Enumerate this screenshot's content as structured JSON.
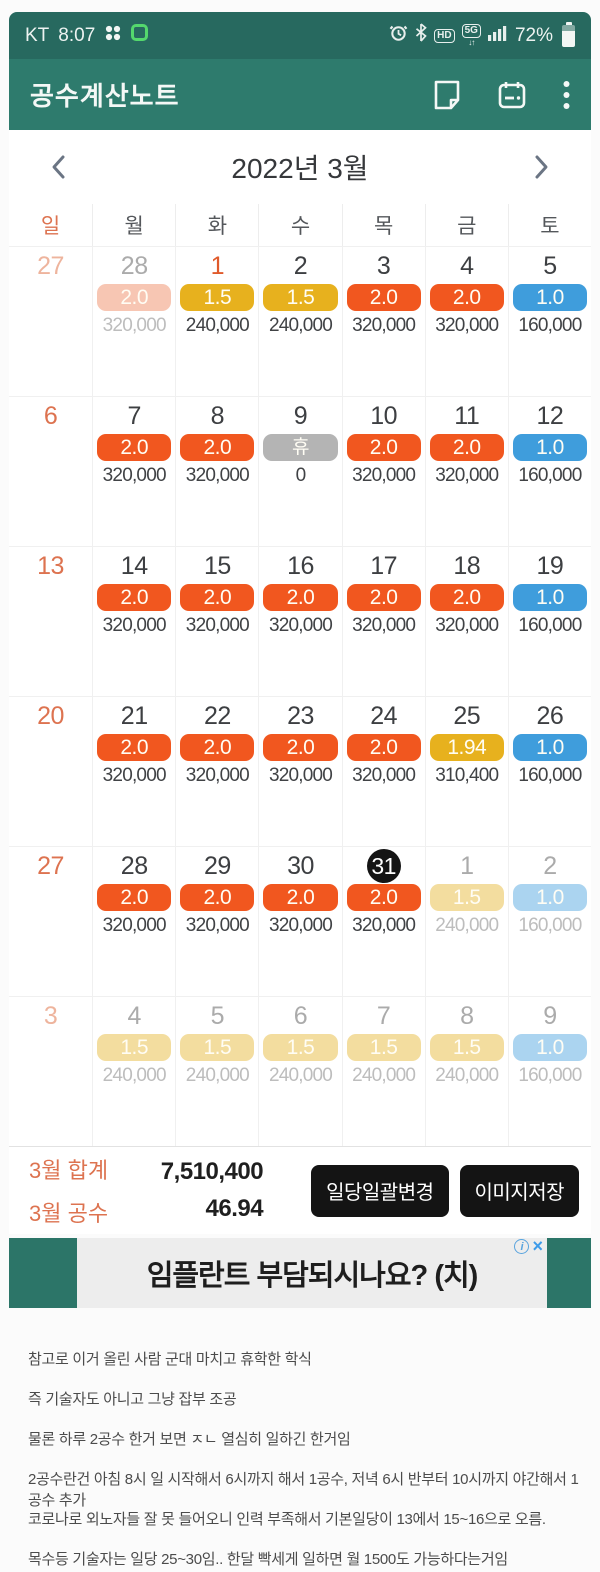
{
  "colors": {
    "status_bar": "#27695f",
    "app_bar": "#2e7b6d",
    "sunday": "#dd7350",
    "holiday": "#e05a2b",
    "pill_full": "#f1571f",
    "pill_half": "#e7b11e",
    "pill_single": "#3f9ddc",
    "pill_rest": "#b4b4b4",
    "pill_full_faded": "#f7c6b3",
    "pill_half_faded": "#f3dd9f",
    "pill_single_faded": "#abd4f0",
    "ad_teal": "#2c7568"
  },
  "status_bar": {
    "carrier": "KT",
    "time": "8:07",
    "hd_label": "HD",
    "fiveg_label": "5G",
    "battery_percent": "72%"
  },
  "app_bar": {
    "title": "공수계산노트"
  },
  "calendar": {
    "month_label": "2022년 3월",
    "day_headers": [
      "일",
      "월",
      "화",
      "수",
      "목",
      "금",
      "토"
    ],
    "weeks": [
      [
        {
          "d": "27",
          "dc": "sunout"
        },
        {
          "d": "28",
          "dc": "out",
          "p": "2.0",
          "pc": "of",
          "a": "320,000",
          "ac": "f"
        },
        {
          "d": "1",
          "dc": "hol",
          "p": "1.5",
          "pc": "y",
          "a": "240,000",
          "ac": "n"
        },
        {
          "d": "2",
          "dc": "wd",
          "p": "1.5",
          "pc": "y",
          "a": "240,000",
          "ac": "n"
        },
        {
          "d": "3",
          "dc": "wd",
          "p": "2.0",
          "pc": "o",
          "a": "320,000",
          "ac": "n"
        },
        {
          "d": "4",
          "dc": "wd",
          "p": "2.0",
          "pc": "o",
          "a": "320,000",
          "ac": "n"
        },
        {
          "d": "5",
          "dc": "wd",
          "p": "1.0",
          "pc": "b",
          "a": "160,000",
          "ac": "n"
        }
      ],
      [
        {
          "d": "6",
          "dc": "sun"
        },
        {
          "d": "7",
          "dc": "wd",
          "p": "2.0",
          "pc": "o",
          "a": "320,000",
          "ac": "n"
        },
        {
          "d": "8",
          "dc": "wd",
          "p": "2.0",
          "pc": "o",
          "a": "320,000",
          "ac": "n"
        },
        {
          "d": "9",
          "dc": "wd",
          "p": "휴",
          "pc": "g",
          "a": "0",
          "ac": "n"
        },
        {
          "d": "10",
          "dc": "wd",
          "p": "2.0",
          "pc": "o",
          "a": "320,000",
          "ac": "n"
        },
        {
          "d": "11",
          "dc": "wd",
          "p": "2.0",
          "pc": "o",
          "a": "320,000",
          "ac": "n"
        },
        {
          "d": "12",
          "dc": "wd",
          "p": "1.0",
          "pc": "b",
          "a": "160,000",
          "ac": "n"
        }
      ],
      [
        {
          "d": "13",
          "dc": "sun"
        },
        {
          "d": "14",
          "dc": "wd",
          "p": "2.0",
          "pc": "o",
          "a": "320,000",
          "ac": "n"
        },
        {
          "d": "15",
          "dc": "wd",
          "p": "2.0",
          "pc": "o",
          "a": "320,000",
          "ac": "n"
        },
        {
          "d": "16",
          "dc": "wd",
          "p": "2.0",
          "pc": "o",
          "a": "320,000",
          "ac": "n"
        },
        {
          "d": "17",
          "dc": "wd",
          "p": "2.0",
          "pc": "o",
          "a": "320,000",
          "ac": "n"
        },
        {
          "d": "18",
          "dc": "wd",
          "p": "2.0",
          "pc": "o",
          "a": "320,000",
          "ac": "n"
        },
        {
          "d": "19",
          "dc": "wd",
          "p": "1.0",
          "pc": "b",
          "a": "160,000",
          "ac": "n"
        }
      ],
      [
        {
          "d": "20",
          "dc": "sun"
        },
        {
          "d": "21",
          "dc": "wd",
          "p": "2.0",
          "pc": "o",
          "a": "320,000",
          "ac": "n"
        },
        {
          "d": "22",
          "dc": "wd",
          "p": "2.0",
          "pc": "o",
          "a": "320,000",
          "ac": "n"
        },
        {
          "d": "23",
          "dc": "wd",
          "p": "2.0",
          "pc": "o",
          "a": "320,000",
          "ac": "n"
        },
        {
          "d": "24",
          "dc": "wd",
          "p": "2.0",
          "pc": "o",
          "a": "320,000",
          "ac": "n"
        },
        {
          "d": "25",
          "dc": "wd",
          "p": "1.94",
          "pc": "y",
          "a": "310,400",
          "ac": "n"
        },
        {
          "d": "26",
          "dc": "wd",
          "p": "1.0",
          "pc": "b",
          "a": "160,000",
          "ac": "n"
        }
      ],
      [
        {
          "d": "27",
          "dc": "sun"
        },
        {
          "d": "28",
          "dc": "wd",
          "p": "2.0",
          "pc": "o",
          "a": "320,000",
          "ac": "n"
        },
        {
          "d": "29",
          "dc": "wd",
          "p": "2.0",
          "pc": "o",
          "a": "320,000",
          "ac": "n"
        },
        {
          "d": "30",
          "dc": "wd",
          "p": "2.0",
          "pc": "o",
          "a": "320,000",
          "ac": "n"
        },
        {
          "d": "31",
          "dc": "today",
          "p": "2.0",
          "pc": "o",
          "a": "320,000",
          "ac": "n"
        },
        {
          "d": "1",
          "dc": "out",
          "p": "1.5",
          "pc": "yf",
          "a": "240,000",
          "ac": "f"
        },
        {
          "d": "2",
          "dc": "out",
          "p": "1.0",
          "pc": "bf",
          "a": "160,000",
          "ac": "f"
        }
      ],
      [
        {
          "d": "3",
          "dc": "sunout"
        },
        {
          "d": "4",
          "dc": "out",
          "p": "1.5",
          "pc": "yf",
          "a": "240,000",
          "ac": "f"
        },
        {
          "d": "5",
          "dc": "out",
          "p": "1.5",
          "pc": "yf",
          "a": "240,000",
          "ac": "f"
        },
        {
          "d": "6",
          "dc": "out",
          "p": "1.5",
          "pc": "yf",
          "a": "240,000",
          "ac": "f"
        },
        {
          "d": "7",
          "dc": "out",
          "p": "1.5",
          "pc": "yf",
          "a": "240,000",
          "ac": "f"
        },
        {
          "d": "8",
          "dc": "out",
          "p": "1.5",
          "pc": "yf",
          "a": "240,000",
          "ac": "f"
        },
        {
          "d": "9",
          "dc": "out",
          "p": "1.0",
          "pc": "bf",
          "a": "160,000",
          "ac": "f"
        }
      ]
    ]
  },
  "summary": {
    "total_label": "3월 합계",
    "total_value": "7,510,400",
    "gongsu_label": "3월 공수",
    "gongsu_value": "46.94",
    "change_button": "일당일괄변경",
    "save_button": "이미지저장"
  },
  "ad": {
    "text": "임플란트 부담되시나요? (치)",
    "close_label": "×"
  },
  "comments": [
    "참고로 이거 올린 사람 군대 마치고 휴학한 학식",
    "즉 기술자도 아니고 그냥 잡부 조공",
    "물론 하루 2공수 한거 보면 ㅈㄴ 열심히 일하긴 한거임",
    "2공수란건 아침 8시 일 시작해서 6시까지 해서 1공수, 저녁 6시 반부터 10시까지 야간해서 1공수 추가",
    "코로나로 외노자들 잘 못 들어오니 인력 부족해서 기본일당이 13에서 15~16으로 오름.",
    "목수등 기술자는 일당 25~30임.. 한달 빡세게 일하면 월 1500도 가능하다는거임"
  ]
}
